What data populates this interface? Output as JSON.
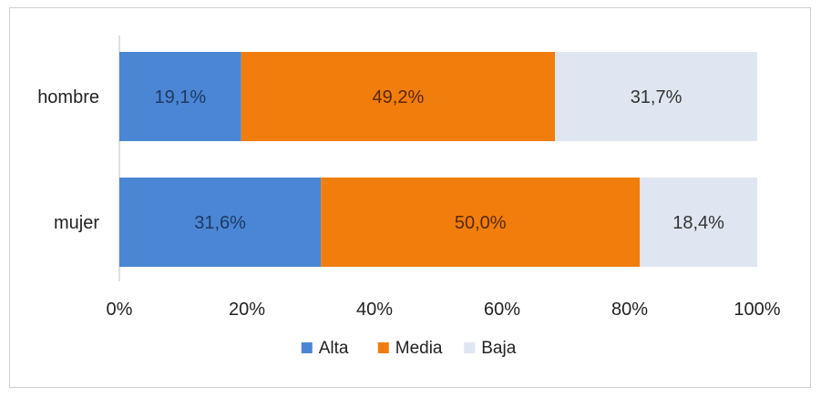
{
  "chart_data": {
    "type": "bar",
    "orientation": "horizontal",
    "stacked": true,
    "categories": [
      "hombre",
      "mujer"
    ],
    "series": [
      {
        "name": "Alta",
        "values": [
          19.1,
          31.6
        ],
        "labels": [
          "19,1%",
          "31,6%"
        ],
        "color": "#4a86d4",
        "label_color": "#1f3864"
      },
      {
        "name": "Media",
        "values": [
          49.2,
          50.0
        ],
        "labels": [
          "49,2%",
          "50,0%"
        ],
        "color": "#f07d0c",
        "label_color": "#5a2a00"
      },
      {
        "name": "Baja",
        "values": [
          31.7,
          18.4
        ],
        "labels": [
          "31,7%",
          "18,4%"
        ],
        "color": "#dfe6f1",
        "label_color": "#333333"
      }
    ],
    "xlim": [
      0,
      100
    ],
    "xticks": [
      0,
      20,
      40,
      60,
      80,
      100
    ],
    "xtick_labels": [
      "0%",
      "20%",
      "40%",
      "60%",
      "80%",
      "100%"
    ],
    "grid": false,
    "legend_position": "bottom",
    "title": "",
    "xlabel": "",
    "ylabel": ""
  }
}
